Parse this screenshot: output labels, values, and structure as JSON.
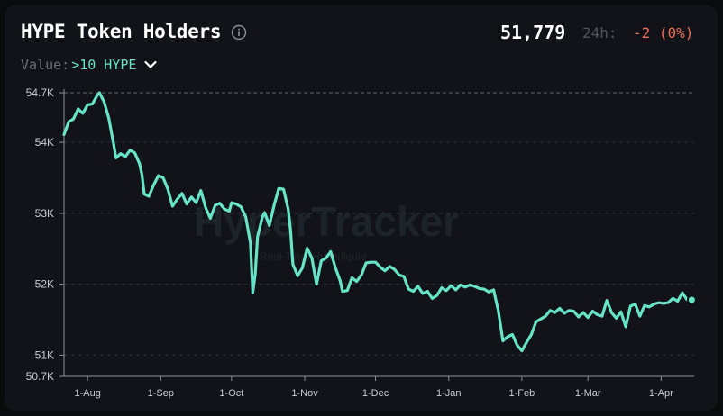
{
  "header": {
    "title": "HYPE Token Holders",
    "holders": "51,779",
    "change_label": "24h:",
    "change": "-2 (0%)"
  },
  "filter": {
    "label": "Value:",
    "value": ">10 HYPE"
  },
  "watermark": {
    "brand": "HyperTracker",
    "subtitle": "Real-Time Hyperliquid"
  },
  "colors": {
    "line": "#67e3c8",
    "negative": "#ee6d57",
    "background": "#121318"
  },
  "icons": {
    "info": "info-icon",
    "dropdown": "chevron-down-icon"
  },
  "chart_data": {
    "type": "line",
    "title": "HYPE Token Holders",
    "xlabel": "",
    "ylabel": "",
    "ylim": [
      50700,
      54700
    ],
    "y_ticks": [
      54700,
      54000,
      53000,
      52000,
      51000,
      50700
    ],
    "y_tick_labels": [
      "54.7K",
      "54K",
      "53K",
      "52K",
      "51K",
      "50.7K"
    ],
    "x_ticks": [
      "2025-08-01",
      "2025-09-01",
      "2025-10-01",
      "2025-11-01",
      "2025-12-01",
      "2026-01-01",
      "2026-02-01",
      "2026-03-01",
      "2026-04-01"
    ],
    "x_tick_labels": [
      "1-Aug",
      "1-Sep",
      "1-Oct",
      "1-Nov",
      "1-Dec",
      "1-Jan",
      "1-Feb",
      "1-Mar",
      "1-Apr"
    ],
    "x_range": [
      "2025-07-22",
      "2026-04-15"
    ],
    "grid": true,
    "reference_line": 54700,
    "series": [
      {
        "values": [
          [
            "2025-07-22",
            54110
          ],
          [
            "2025-07-24",
            54290
          ],
          [
            "2025-07-26",
            54330
          ],
          [
            "2025-07-28",
            54470
          ],
          [
            "2025-07-30",
            54410
          ],
          [
            "2025-08-01",
            54530
          ],
          [
            "2025-08-03",
            54540
          ],
          [
            "2025-08-05",
            54660
          ],
          [
            "2025-08-06",
            54700
          ],
          [
            "2025-08-08",
            54570
          ],
          [
            "2025-08-10",
            54340
          ],
          [
            "2025-08-12",
            53980
          ],
          [
            "2025-08-13",
            53780
          ],
          [
            "2025-08-15",
            53840
          ],
          [
            "2025-08-17",
            53800
          ],
          [
            "2025-08-19",
            53890
          ],
          [
            "2025-08-21",
            53850
          ],
          [
            "2025-08-23",
            53700
          ],
          [
            "2025-08-24",
            53550
          ],
          [
            "2025-08-25",
            53270
          ],
          [
            "2025-08-27",
            53240
          ],
          [
            "2025-08-29",
            53400
          ],
          [
            "2025-08-31",
            53530
          ],
          [
            "2025-09-02",
            53500
          ],
          [
            "2025-09-04",
            53340
          ],
          [
            "2025-09-06",
            53100
          ],
          [
            "2025-09-08",
            53200
          ],
          [
            "2025-09-10",
            53280
          ],
          [
            "2025-09-12",
            53130
          ],
          [
            "2025-09-14",
            53230
          ],
          [
            "2025-09-16",
            53150
          ],
          [
            "2025-09-18",
            53320
          ],
          [
            "2025-09-20",
            53080
          ],
          [
            "2025-09-22",
            52930
          ],
          [
            "2025-09-24",
            53110
          ],
          [
            "2025-09-26",
            53140
          ],
          [
            "2025-09-28",
            53060
          ],
          [
            "2025-09-30",
            53030
          ],
          [
            "2025-10-01",
            53150
          ],
          [
            "2025-10-03",
            53130
          ],
          [
            "2025-10-05",
            53090
          ],
          [
            "2025-10-07",
            52950
          ],
          [
            "2025-10-09",
            52580
          ],
          [
            "2025-10-10",
            51880
          ],
          [
            "2025-10-11",
            52140
          ],
          [
            "2025-10-12",
            52670
          ],
          [
            "2025-10-14",
            52940
          ],
          [
            "2025-10-15",
            53010
          ],
          [
            "2025-10-17",
            52830
          ],
          [
            "2025-10-19",
            53110
          ],
          [
            "2025-10-21",
            53350
          ],
          [
            "2025-10-23",
            53340
          ],
          [
            "2025-10-25",
            53060
          ],
          [
            "2025-10-26",
            52760
          ],
          [
            "2025-10-27",
            52280
          ],
          [
            "2025-10-29",
            52120
          ],
          [
            "2025-10-31",
            52230
          ],
          [
            "2025-11-02",
            52510
          ],
          [
            "2025-11-04",
            52370
          ],
          [
            "2025-11-06",
            52000
          ],
          [
            "2025-11-08",
            52330
          ],
          [
            "2025-11-10",
            52370
          ],
          [
            "2025-11-12",
            52460
          ],
          [
            "2025-11-14",
            52230
          ],
          [
            "2025-11-16",
            52050
          ],
          [
            "2025-11-17",
            51900
          ],
          [
            "2025-11-19",
            51910
          ],
          [
            "2025-11-21",
            52090
          ],
          [
            "2025-11-23",
            52040
          ],
          [
            "2025-11-25",
            52130
          ],
          [
            "2025-11-27",
            52300
          ],
          [
            "2025-11-29",
            52310
          ],
          [
            "2025-12-01",
            52310
          ],
          [
            "2025-12-03",
            52240
          ],
          [
            "2025-12-05",
            52190
          ],
          [
            "2025-12-07",
            52250
          ],
          [
            "2025-12-09",
            52210
          ],
          [
            "2025-12-11",
            52130
          ],
          [
            "2025-12-13",
            52110
          ],
          [
            "2025-12-15",
            51930
          ],
          [
            "2025-12-17",
            51900
          ],
          [
            "2025-12-19",
            51970
          ],
          [
            "2025-12-21",
            51870
          ],
          [
            "2025-12-23",
            51900
          ],
          [
            "2025-12-25",
            51800
          ],
          [
            "2025-12-27",
            51840
          ],
          [
            "2025-12-29",
            51950
          ],
          [
            "2025-12-31",
            51910
          ],
          [
            "2026-01-02",
            51980
          ],
          [
            "2026-01-04",
            51920
          ],
          [
            "2026-01-06",
            51990
          ],
          [
            "2026-01-08",
            51960
          ],
          [
            "2026-01-10",
            51990
          ],
          [
            "2026-01-12",
            51970
          ],
          [
            "2026-01-14",
            51940
          ],
          [
            "2026-01-16",
            51930
          ],
          [
            "2026-01-18",
            51890
          ],
          [
            "2026-01-20",
            51920
          ],
          [
            "2026-01-22",
            51630
          ],
          [
            "2026-01-24",
            51200
          ],
          [
            "2026-01-26",
            51260
          ],
          [
            "2026-01-28",
            51290
          ],
          [
            "2026-01-30",
            51140
          ],
          [
            "2026-02-01",
            51060
          ],
          [
            "2026-02-03",
            51180
          ],
          [
            "2026-02-05",
            51290
          ],
          [
            "2026-02-07",
            51470
          ],
          [
            "2026-02-09",
            51510
          ],
          [
            "2026-02-11",
            51550
          ],
          [
            "2026-02-13",
            51630
          ],
          [
            "2026-02-15",
            51600
          ],
          [
            "2026-02-17",
            51660
          ],
          [
            "2026-02-19",
            51590
          ],
          [
            "2026-02-21",
            51630
          ],
          [
            "2026-02-23",
            51620
          ],
          [
            "2026-02-25",
            51540
          ],
          [
            "2026-02-27",
            51600
          ],
          [
            "2026-03-01",
            51530
          ],
          [
            "2026-03-03",
            51620
          ],
          [
            "2026-03-05",
            51570
          ],
          [
            "2026-03-07",
            51550
          ],
          [
            "2026-03-09",
            51770
          ],
          [
            "2026-03-11",
            51600
          ],
          [
            "2026-03-13",
            51520
          ],
          [
            "2026-03-15",
            51610
          ],
          [
            "2026-03-17",
            51400
          ],
          [
            "2026-03-19",
            51690
          ],
          [
            "2026-03-21",
            51720
          ],
          [
            "2026-03-23",
            51550
          ],
          [
            "2026-03-25",
            51700
          ],
          [
            "2026-03-27",
            51680
          ],
          [
            "2026-03-29",
            51720
          ],
          [
            "2026-03-31",
            51740
          ],
          [
            "2026-04-02",
            51730
          ],
          [
            "2026-04-04",
            51740
          ],
          [
            "2026-04-06",
            51800
          ],
          [
            "2026-04-08",
            51760
          ],
          [
            "2026-04-10",
            51880
          ],
          [
            "2026-04-12",
            51780
          ],
          [
            "2026-04-14",
            51779
          ]
        ]
      }
    ]
  }
}
